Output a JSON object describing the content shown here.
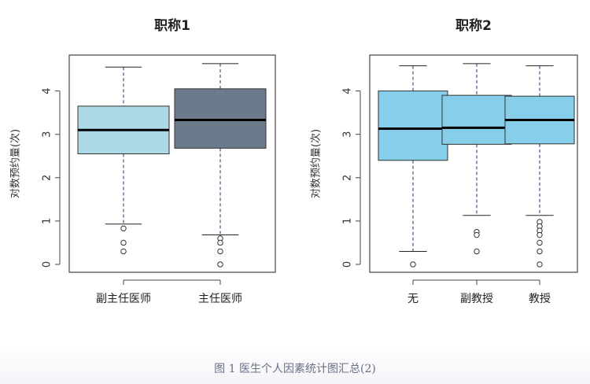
{
  "caption": "图 1  医生个人因素统计图汇总(2)",
  "chart_data": [
    {
      "type": "box",
      "title": "职称1",
      "xlabel": "",
      "ylabel": "对数预约量(次)",
      "ylim": [
        0,
        4.7
      ],
      "yticks": [
        0,
        1,
        2,
        3,
        4
      ],
      "categories": [
        "副主任医师",
        "主任医师"
      ],
      "fill_colors": [
        "#add8e6",
        "#6c7b8b"
      ],
      "boxes": [
        {
          "whisker_low": 0.93,
          "q1": 2.55,
          "median": 3.1,
          "q3": 3.65,
          "whisker_high": 4.55,
          "outliers": [
            0.83,
            0.5,
            0.3
          ]
        },
        {
          "whisker_low": 0.68,
          "q1": 2.68,
          "median": 3.33,
          "q3": 4.05,
          "whisker_high": 4.63,
          "outliers": [
            0.6,
            0.5,
            0.3,
            0.0
          ]
        }
      ]
    },
    {
      "type": "box",
      "title": "职称2",
      "xlabel": "",
      "ylabel": "对数预约量(次)",
      "ylim": [
        0,
        4.7
      ],
      "yticks": [
        0,
        1,
        2,
        3,
        4
      ],
      "categories": [
        "无",
        "副教授",
        "教授"
      ],
      "fill_colors": [
        "#87ceeb",
        "#87ceeb",
        "#87ceeb"
      ],
      "boxes": [
        {
          "whisker_low": 0.3,
          "q1": 2.4,
          "median": 3.13,
          "q3": 4.0,
          "whisker_high": 4.58,
          "outliers": [
            0.0
          ]
        },
        {
          "whisker_low": 1.13,
          "q1": 2.77,
          "median": 3.15,
          "q3": 3.9,
          "whisker_high": 4.63,
          "outliers": [
            0.75,
            0.68,
            0.3
          ]
        },
        {
          "whisker_low": 1.13,
          "q1": 2.78,
          "median": 3.33,
          "q3": 3.88,
          "whisker_high": 4.58,
          "outliers": [
            0.98,
            0.88,
            0.78,
            0.68,
            0.5,
            0.3,
            0.0
          ]
        }
      ]
    }
  ]
}
